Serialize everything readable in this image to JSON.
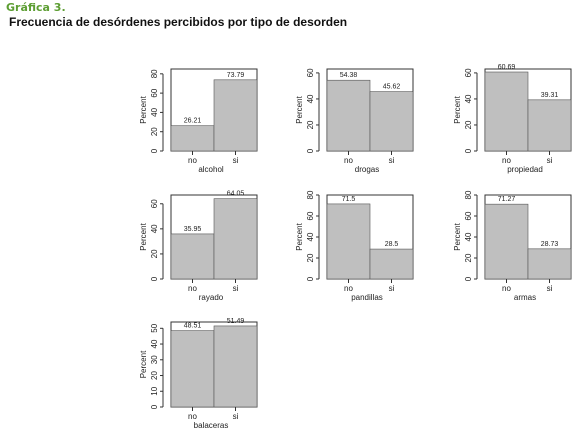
{
  "figure": {
    "label": "Gráfica 3.",
    "title": "Frecuencia de desórdenes percibidos por tipo de desorden",
    "label_color": "#5d9e33"
  },
  "chart_data": [
    {
      "type": "bar",
      "xlabel": "alcohol",
      "ylabel": "Percent",
      "categories": [
        "no",
        "si"
      ],
      "values": [
        26.21,
        73.79
      ],
      "value_labels": [
        "26.21",
        "73.79"
      ],
      "yticks": [
        0,
        20,
        40,
        60,
        80
      ],
      "ylim": [
        0,
        85
      ],
      "bar_color": "#bfbfbf"
    },
    {
      "type": "bar",
      "xlabel": "drogas",
      "ylabel": "Percent",
      "categories": [
        "no",
        "si"
      ],
      "values": [
        54.38,
        45.62
      ],
      "value_labels": [
        "54.38",
        "45.62"
      ],
      "yticks": [
        0,
        20,
        40,
        60
      ],
      "ylim": [
        0,
        63
      ],
      "bar_color": "#bfbfbf"
    },
    {
      "type": "bar",
      "xlabel": "propiedad",
      "ylabel": "Percent",
      "categories": [
        "no",
        "si"
      ],
      "values": [
        60.69,
        39.31
      ],
      "value_labels": [
        "60.69",
        "39.31"
      ],
      "yticks": [
        0,
        20,
        40,
        60
      ],
      "ylim": [
        0,
        63
      ],
      "bar_color": "#bfbfbf"
    },
    {
      "type": "bar",
      "xlabel": "rayado",
      "ylabel": "Percent",
      "categories": [
        "no",
        "si"
      ],
      "values": [
        35.95,
        64.05
      ],
      "value_labels": [
        "35.95",
        "64.05"
      ],
      "yticks": [
        0,
        20,
        40,
        60
      ],
      "ylim": [
        0,
        67
      ],
      "bar_color": "#bfbfbf"
    },
    {
      "type": "bar",
      "xlabel": "pandillas",
      "ylabel": "Percent",
      "categories": [
        "no",
        "si"
      ],
      "values": [
        71.5,
        28.5
      ],
      "value_labels": [
        "71.5",
        "28.5"
      ],
      "yticks": [
        0,
        20,
        40,
        60,
        80
      ],
      "ylim": [
        0,
        80
      ],
      "bar_color": "#bfbfbf"
    },
    {
      "type": "bar",
      "xlabel": "armas",
      "ylabel": "Percent",
      "categories": [
        "no",
        "si"
      ],
      "values": [
        71.27,
        28.73
      ],
      "value_labels": [
        "71.27",
        "28.73"
      ],
      "yticks": [
        0,
        20,
        40,
        60,
        80
      ],
      "ylim": [
        0,
        80
      ],
      "bar_color": "#bfbfbf"
    },
    {
      "type": "bar",
      "xlabel": "balaceras",
      "ylabel": "Percent",
      "categories": [
        "no",
        "si"
      ],
      "values": [
        48.51,
        51.49
      ],
      "value_labels": [
        "48.51",
        "51.49"
      ],
      "yticks": [
        0,
        10,
        20,
        30,
        40,
        50
      ],
      "ylim": [
        0,
        54
      ],
      "bar_color": "#bfbfbf"
    }
  ]
}
